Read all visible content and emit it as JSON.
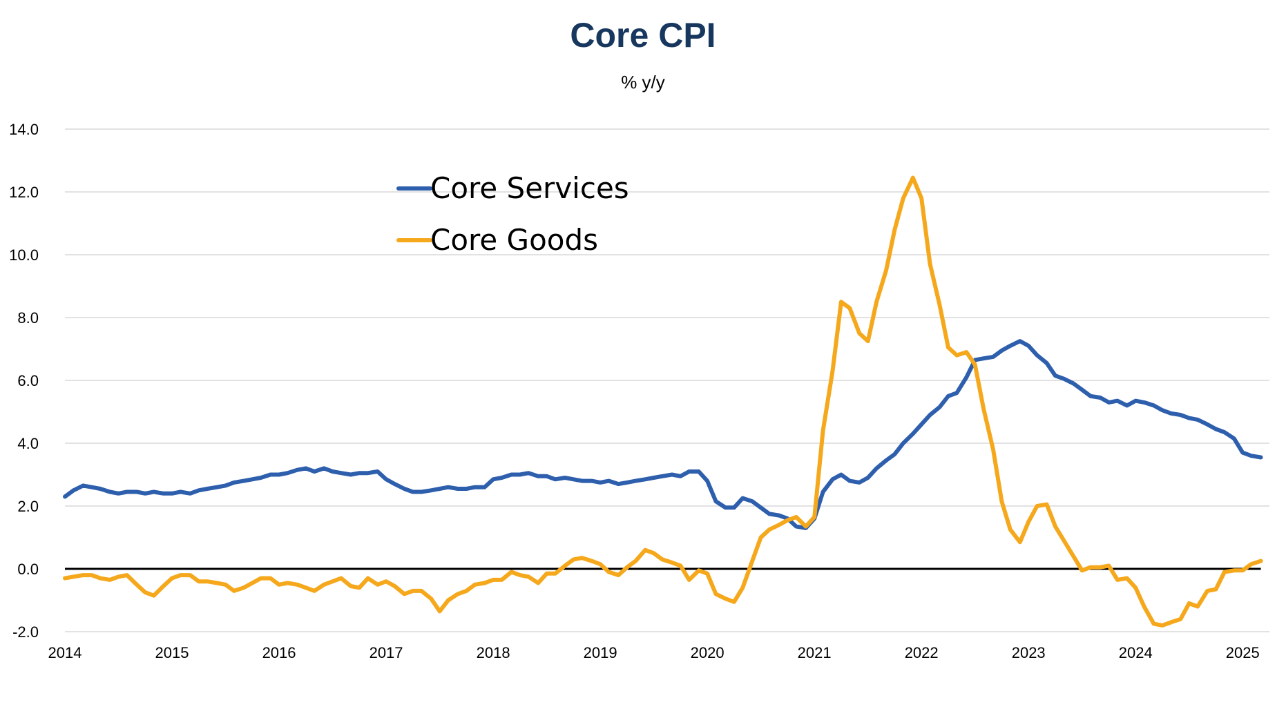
{
  "chart_data": {
    "type": "line",
    "title": "Core CPI",
    "subtitle": "% y/y",
    "xlabel": "",
    "ylabel": "",
    "ylim": [
      -2.0,
      14.0
    ],
    "xlim": [
      2014.0,
      2025.25
    ],
    "y_ticks": [
      "14.0",
      "12.0",
      "10.0",
      "8.0",
      "6.0",
      "4.0",
      "2.0",
      "0.0",
      "-2.0"
    ],
    "x_ticks": [
      "2014",
      "2015",
      "2016",
      "2017",
      "2018",
      "2019",
      "2020",
      "2021",
      "2022",
      "2023",
      "2024",
      "2025"
    ],
    "grid": true,
    "legend_position": "top-center",
    "colors": {
      "title": "#17375e",
      "grid": "#d9d9d9",
      "zero_line": "#000000"
    },
    "series": [
      {
        "name": "Core Services",
        "color": "#2e5fad",
        "points": [
          [
            2014.0,
            2.3
          ],
          [
            2014.08,
            2.5
          ],
          [
            2014.17,
            2.65
          ],
          [
            2014.25,
            2.6
          ],
          [
            2014.33,
            2.55
          ],
          [
            2014.42,
            2.45
          ],
          [
            2014.5,
            2.4
          ],
          [
            2014.58,
            2.45
          ],
          [
            2014.67,
            2.45
          ],
          [
            2014.75,
            2.4
          ],
          [
            2014.83,
            2.45
          ],
          [
            2014.92,
            2.4
          ],
          [
            2015.0,
            2.4
          ],
          [
            2015.08,
            2.45
          ],
          [
            2015.17,
            2.4
          ],
          [
            2015.25,
            2.5
          ],
          [
            2015.33,
            2.55
          ],
          [
            2015.42,
            2.6
          ],
          [
            2015.5,
            2.65
          ],
          [
            2015.58,
            2.75
          ],
          [
            2015.67,
            2.8
          ],
          [
            2015.75,
            2.85
          ],
          [
            2015.83,
            2.9
          ],
          [
            2015.92,
            3.0
          ],
          [
            2016.0,
            3.0
          ],
          [
            2016.08,
            3.05
          ],
          [
            2016.17,
            3.15
          ],
          [
            2016.25,
            3.2
          ],
          [
            2016.33,
            3.1
          ],
          [
            2016.42,
            3.2
          ],
          [
            2016.5,
            3.1
          ],
          [
            2016.58,
            3.05
          ],
          [
            2016.67,
            3.0
          ],
          [
            2016.75,
            3.05
          ],
          [
            2016.83,
            3.05
          ],
          [
            2016.92,
            3.1
          ],
          [
            2017.0,
            2.85
          ],
          [
            2017.08,
            2.7
          ],
          [
            2017.17,
            2.55
          ],
          [
            2017.25,
            2.45
          ],
          [
            2017.33,
            2.45
          ],
          [
            2017.42,
            2.5
          ],
          [
            2017.5,
            2.55
          ],
          [
            2017.58,
            2.6
          ],
          [
            2017.67,
            2.55
          ],
          [
            2017.75,
            2.55
          ],
          [
            2017.83,
            2.6
          ],
          [
            2017.92,
            2.6
          ],
          [
            2018.0,
            2.85
          ],
          [
            2018.08,
            2.9
          ],
          [
            2018.17,
            3.0
          ],
          [
            2018.25,
            3.0
          ],
          [
            2018.33,
            3.05
          ],
          [
            2018.42,
            2.95
          ],
          [
            2018.5,
            2.95
          ],
          [
            2018.58,
            2.85
          ],
          [
            2018.67,
            2.9
          ],
          [
            2018.75,
            2.85
          ],
          [
            2018.83,
            2.8
          ],
          [
            2018.92,
            2.8
          ],
          [
            2019.0,
            2.75
          ],
          [
            2019.08,
            2.8
          ],
          [
            2019.17,
            2.7
          ],
          [
            2019.25,
            2.75
          ],
          [
            2019.33,
            2.8
          ],
          [
            2019.42,
            2.85
          ],
          [
            2019.5,
            2.9
          ],
          [
            2019.58,
            2.95
          ],
          [
            2019.67,
            3.0
          ],
          [
            2019.75,
            2.95
          ],
          [
            2019.83,
            3.1
          ],
          [
            2019.92,
            3.1
          ],
          [
            2020.0,
            2.8
          ],
          [
            2020.08,
            2.15
          ],
          [
            2020.17,
            1.95
          ],
          [
            2020.25,
            1.95
          ],
          [
            2020.33,
            2.25
          ],
          [
            2020.42,
            2.15
          ],
          [
            2020.5,
            1.95
          ],
          [
            2020.58,
            1.75
          ],
          [
            2020.67,
            1.7
          ],
          [
            2020.75,
            1.6
          ],
          [
            2020.83,
            1.35
          ],
          [
            2020.92,
            1.3
          ],
          [
            2021.0,
            1.6
          ],
          [
            2021.08,
            2.45
          ],
          [
            2021.17,
            2.85
          ],
          [
            2021.25,
            3.0
          ],
          [
            2021.33,
            2.8
          ],
          [
            2021.42,
            2.75
          ],
          [
            2021.5,
            2.9
          ],
          [
            2021.58,
            3.2
          ],
          [
            2021.67,
            3.45
          ],
          [
            2021.75,
            3.65
          ],
          [
            2021.83,
            4.0
          ],
          [
            2021.92,
            4.3
          ],
          [
            2022.0,
            4.6
          ],
          [
            2022.08,
            4.9
          ],
          [
            2022.17,
            5.15
          ],
          [
            2022.25,
            5.5
          ],
          [
            2022.33,
            5.6
          ],
          [
            2022.42,
            6.1
          ],
          [
            2022.5,
            6.65
          ],
          [
            2022.58,
            6.7
          ],
          [
            2022.67,
            6.75
          ],
          [
            2022.75,
            6.95
          ],
          [
            2022.83,
            7.1
          ],
          [
            2022.92,
            7.25
          ],
          [
            2023.0,
            7.1
          ],
          [
            2023.08,
            6.8
          ],
          [
            2023.17,
            6.55
          ],
          [
            2023.25,
            6.15
          ],
          [
            2023.33,
            6.05
          ],
          [
            2023.42,
            5.9
          ],
          [
            2023.5,
            5.7
          ],
          [
            2023.58,
            5.5
          ],
          [
            2023.67,
            5.45
          ],
          [
            2023.75,
            5.3
          ],
          [
            2023.83,
            5.35
          ],
          [
            2023.92,
            5.2
          ],
          [
            2024.0,
            5.35
          ],
          [
            2024.08,
            5.3
          ],
          [
            2024.17,
            5.2
          ],
          [
            2024.25,
            5.05
          ],
          [
            2024.33,
            4.95
          ],
          [
            2024.42,
            4.9
          ],
          [
            2024.5,
            4.8
          ],
          [
            2024.58,
            4.75
          ],
          [
            2024.67,
            4.6
          ],
          [
            2024.75,
            4.45
          ],
          [
            2024.83,
            4.35
          ],
          [
            2024.92,
            4.15
          ],
          [
            2025.0,
            3.7
          ],
          [
            2025.08,
            3.6
          ],
          [
            2025.17,
            3.55
          ]
        ]
      },
      {
        "name": "Core Goods",
        "color": "#f5a81c",
        "points": [
          [
            2014.0,
            -0.3
          ],
          [
            2014.08,
            -0.25
          ],
          [
            2014.17,
            -0.2
          ],
          [
            2014.25,
            -0.2
          ],
          [
            2014.33,
            -0.3
          ],
          [
            2014.42,
            -0.35
          ],
          [
            2014.5,
            -0.25
          ],
          [
            2014.58,
            -0.2
          ],
          [
            2014.67,
            -0.5
          ],
          [
            2014.75,
            -0.75
          ],
          [
            2014.83,
            -0.85
          ],
          [
            2014.92,
            -0.55
          ],
          [
            2015.0,
            -0.3
          ],
          [
            2015.08,
            -0.2
          ],
          [
            2015.17,
            -0.2
          ],
          [
            2015.25,
            -0.4
          ],
          [
            2015.33,
            -0.4
          ],
          [
            2015.42,
            -0.45
          ],
          [
            2015.5,
            -0.5
          ],
          [
            2015.58,
            -0.7
          ],
          [
            2015.67,
            -0.6
          ],
          [
            2015.75,
            -0.45
          ],
          [
            2015.83,
            -0.3
          ],
          [
            2015.92,
            -0.3
          ],
          [
            2016.0,
            -0.5
          ],
          [
            2016.08,
            -0.45
          ],
          [
            2016.17,
            -0.5
          ],
          [
            2016.25,
            -0.6
          ],
          [
            2016.33,
            -0.7
          ],
          [
            2016.42,
            -0.5
          ],
          [
            2016.5,
            -0.4
          ],
          [
            2016.58,
            -0.3
          ],
          [
            2016.67,
            -0.55
          ],
          [
            2016.75,
            -0.6
          ],
          [
            2016.83,
            -0.3
          ],
          [
            2016.92,
            -0.5
          ],
          [
            2017.0,
            -0.4
          ],
          [
            2017.08,
            -0.55
          ],
          [
            2017.17,
            -0.8
          ],
          [
            2017.25,
            -0.7
          ],
          [
            2017.33,
            -0.7
          ],
          [
            2017.42,
            -0.95
          ],
          [
            2017.5,
            -1.35
          ],
          [
            2017.58,
            -1.0
          ],
          [
            2017.67,
            -0.8
          ],
          [
            2017.75,
            -0.7
          ],
          [
            2017.83,
            -0.5
          ],
          [
            2017.92,
            -0.45
          ],
          [
            2018.0,
            -0.35
          ],
          [
            2018.08,
            -0.35
          ],
          [
            2018.17,
            -0.1
          ],
          [
            2018.25,
            -0.2
          ],
          [
            2018.33,
            -0.25
          ],
          [
            2018.42,
            -0.45
          ],
          [
            2018.5,
            -0.15
          ],
          [
            2018.58,
            -0.15
          ],
          [
            2018.67,
            0.1
          ],
          [
            2018.75,
            0.3
          ],
          [
            2018.83,
            0.35
          ],
          [
            2018.92,
            0.25
          ],
          [
            2019.0,
            0.15
          ],
          [
            2019.08,
            -0.1
          ],
          [
            2019.17,
            -0.2
          ],
          [
            2019.25,
            0.05
          ],
          [
            2019.33,
            0.25
          ],
          [
            2019.42,
            0.6
          ],
          [
            2019.5,
            0.5
          ],
          [
            2019.58,
            0.3
          ],
          [
            2019.67,
            0.2
          ],
          [
            2019.75,
            0.1
          ],
          [
            2019.83,
            -0.35
          ],
          [
            2019.92,
            -0.05
          ],
          [
            2020.0,
            -0.15
          ],
          [
            2020.08,
            -0.8
          ],
          [
            2020.17,
            -0.95
          ],
          [
            2020.25,
            -1.05
          ],
          [
            2020.33,
            -0.6
          ],
          [
            2020.42,
            0.25
          ],
          [
            2020.5,
            1.0
          ],
          [
            2020.58,
            1.25
          ],
          [
            2020.67,
            1.4
          ],
          [
            2020.75,
            1.55
          ],
          [
            2020.83,
            1.65
          ],
          [
            2020.92,
            1.35
          ],
          [
            2021.0,
            1.65
          ],
          [
            2021.08,
            4.4
          ],
          [
            2021.17,
            6.3
          ],
          [
            2021.25,
            8.5
          ],
          [
            2021.33,
            8.3
          ],
          [
            2021.42,
            7.5
          ],
          [
            2021.5,
            7.25
          ],
          [
            2021.58,
            8.5
          ],
          [
            2021.67,
            9.5
          ],
          [
            2021.75,
            10.8
          ],
          [
            2021.83,
            11.8
          ],
          [
            2021.92,
            12.45
          ],
          [
            2022.0,
            11.8
          ],
          [
            2022.08,
            9.7
          ],
          [
            2022.17,
            8.4
          ],
          [
            2022.25,
            7.05
          ],
          [
            2022.33,
            6.8
          ],
          [
            2022.42,
            6.9
          ],
          [
            2022.5,
            6.5
          ],
          [
            2022.58,
            5.1
          ],
          [
            2022.67,
            3.8
          ],
          [
            2022.75,
            2.15
          ],
          [
            2022.83,
            1.25
          ],
          [
            2022.92,
            0.85
          ],
          [
            2023.0,
            1.5
          ],
          [
            2023.08,
            2.0
          ],
          [
            2023.17,
            2.05
          ],
          [
            2023.25,
            1.35
          ],
          [
            2023.33,
            0.9
          ],
          [
            2023.42,
            0.4
          ],
          [
            2023.5,
            -0.05
          ],
          [
            2023.58,
            0.05
          ],
          [
            2023.67,
            0.05
          ],
          [
            2023.75,
            0.1
          ],
          [
            2023.83,
            -0.35
          ],
          [
            2023.92,
            -0.3
          ],
          [
            2024.0,
            -0.6
          ],
          [
            2024.08,
            -1.2
          ],
          [
            2024.17,
            -1.75
          ],
          [
            2024.25,
            -1.8
          ],
          [
            2024.33,
            -1.7
          ],
          [
            2024.42,
            -1.6
          ],
          [
            2024.5,
            -1.1
          ],
          [
            2024.58,
            -1.2
          ],
          [
            2024.67,
            -0.7
          ],
          [
            2024.75,
            -0.65
          ],
          [
            2024.83,
            -0.1
          ],
          [
            2024.92,
            -0.05
          ],
          [
            2025.0,
            -0.05
          ],
          [
            2025.08,
            0.15
          ],
          [
            2025.17,
            0.25
          ]
        ]
      }
    ]
  }
}
